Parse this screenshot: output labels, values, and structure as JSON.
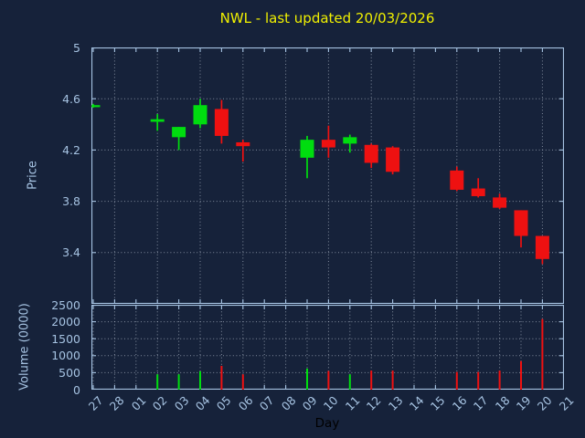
{
  "colors": {
    "background": "#16223a",
    "axis": "#a6c3e2",
    "grid": "#aeb8c8",
    "title": "#f0f000",
    "up": "#00dd0f",
    "down": "#ee1111",
    "xlabel": "#000000"
  },
  "chart_data": {
    "type": "candlestick",
    "title": "NWL - last updated 20/03/2026",
    "xlabel": "Day",
    "x_categories": [
      "27",
      "28",
      "01",
      "02",
      "03",
      "04",
      "05",
      "06",
      "07",
      "08",
      "09",
      "10",
      "11",
      "12",
      "13",
      "14",
      "15",
      "16",
      "17",
      "18",
      "19",
      "20",
      "21"
    ],
    "price_panel": {
      "ylabel": "Price",
      "ylim": [
        3.0,
        5.0
      ],
      "yticks": [
        "5",
        "4.6",
        "4.2",
        "3.8",
        "3.4"
      ],
      "grid": "on",
      "x_grid_every": 2
    },
    "volume_panel": {
      "ylabel": "Volume (0000)",
      "ylim": [
        0,
        2500
      ],
      "yticks": [
        "2500",
        "2000",
        "1500",
        "1000",
        "500",
        "0"
      ],
      "grid": "on",
      "x_grid_every": 1
    },
    "candles": [
      {
        "day": "27",
        "open": 4.54,
        "high": 4.56,
        "low": 4.53,
        "close": 4.55,
        "direction": "up"
      },
      {
        "day": "02",
        "open": 4.42,
        "high": 4.48,
        "low": 4.35,
        "close": 4.44,
        "direction": "up"
      },
      {
        "day": "03",
        "open": 4.3,
        "high": 4.38,
        "low": 4.2,
        "close": 4.38,
        "direction": "up"
      },
      {
        "day": "04",
        "open": 4.4,
        "high": 4.6,
        "low": 4.37,
        "close": 4.55,
        "direction": "up"
      },
      {
        "day": "05",
        "open": 4.52,
        "high": 4.59,
        "low": 4.25,
        "close": 4.31,
        "direction": "down"
      },
      {
        "day": "06",
        "open": 4.26,
        "high": 4.28,
        "low": 4.11,
        "close": 4.23,
        "direction": "down"
      },
      {
        "day": "09",
        "open": 4.14,
        "high": 4.31,
        "low": 3.98,
        "close": 4.28,
        "direction": "up"
      },
      {
        "day": "10",
        "open": 4.28,
        "high": 4.39,
        "low": 4.14,
        "close": 4.22,
        "direction": "down"
      },
      {
        "day": "11",
        "open": 4.25,
        "high": 4.32,
        "low": 4.18,
        "close": 4.3,
        "direction": "up"
      },
      {
        "day": "12",
        "open": 4.24,
        "high": 4.25,
        "low": 4.06,
        "close": 4.1,
        "direction": "down"
      },
      {
        "day": "13",
        "open": 4.22,
        "high": 4.23,
        "low": 4.01,
        "close": 4.03,
        "direction": "down"
      },
      {
        "day": "16",
        "open": 4.04,
        "high": 4.07,
        "low": 3.88,
        "close": 3.89,
        "direction": "down"
      },
      {
        "day": "17",
        "open": 3.9,
        "high": 3.98,
        "low": 3.83,
        "close": 3.84,
        "direction": "down"
      },
      {
        "day": "18",
        "open": 3.83,
        "high": 3.86,
        "low": 3.74,
        "close": 3.75,
        "direction": "down"
      },
      {
        "day": "19",
        "open": 3.73,
        "high": 3.73,
        "low": 3.44,
        "close": 3.53,
        "direction": "down"
      },
      {
        "day": "20",
        "open": 3.53,
        "high": 3.53,
        "low": 3.31,
        "close": 3.35,
        "direction": "down"
      }
    ],
    "volumes": [
      {
        "day": "02",
        "value": 450,
        "direction": "up"
      },
      {
        "day": "03",
        "value": 450,
        "direction": "up"
      },
      {
        "day": "04",
        "value": 540,
        "direction": "up"
      },
      {
        "day": "05",
        "value": 700,
        "direction": "down"
      },
      {
        "day": "06",
        "value": 450,
        "direction": "down"
      },
      {
        "day": "09",
        "value": 620,
        "direction": "up"
      },
      {
        "day": "10",
        "value": 550,
        "direction": "down"
      },
      {
        "day": "11",
        "value": 450,
        "direction": "up"
      },
      {
        "day": "12",
        "value": 560,
        "direction": "down"
      },
      {
        "day": "13",
        "value": 560,
        "direction": "down"
      },
      {
        "day": "16",
        "value": 520,
        "direction": "down"
      },
      {
        "day": "17",
        "value": 520,
        "direction": "down"
      },
      {
        "day": "18",
        "value": 560,
        "direction": "down"
      },
      {
        "day": "19",
        "value": 840,
        "direction": "down"
      },
      {
        "day": "20",
        "value": 2080,
        "direction": "down"
      }
    ]
  }
}
